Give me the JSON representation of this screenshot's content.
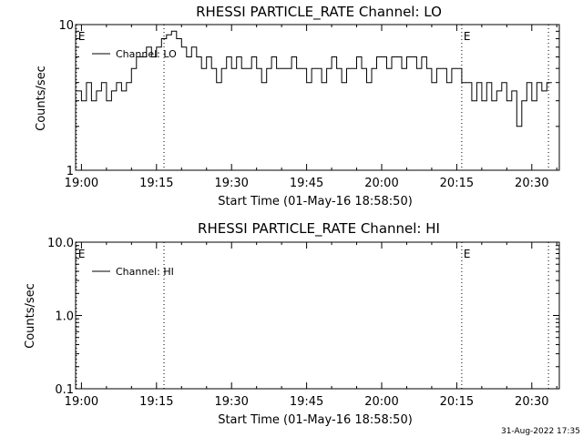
{
  "footer_timestamp": "31-Aug-2022 17:35",
  "chart_data": [
    {
      "type": "line",
      "title": "RHESSI PARTICLE_RATE Channel: LO",
      "xlabel": "Start Time (01-May-16 18:58:50)",
      "ylabel": "Counts/sec",
      "yscale": "log",
      "ylim": [
        1,
        10
      ],
      "xlim": [
        "18:58:50",
        "20:35:30"
      ],
      "x_ticks": [
        "19:00",
        "19:15",
        "19:30",
        "19:45",
        "20:00",
        "20:15",
        "20:30"
      ],
      "y_ticks": [
        "1",
        "10"
      ],
      "legend": "Channel: LO",
      "legend_position": "top-left",
      "event_markers": [
        {
          "label": "E",
          "time": "18:59:00"
        },
        {
          "label": "",
          "time": "19:16:30"
        },
        {
          "label": "E",
          "time": "20:16:00"
        },
        {
          "label": "",
          "time": "20:33:20"
        }
      ],
      "series": [
        {
          "name": "Channel: LO",
          "x": [
            "18:59",
            "19:00",
            "19:01",
            "19:02",
            "19:03",
            "19:04",
            "19:05",
            "19:06",
            "19:07",
            "19:08",
            "19:09",
            "19:10",
            "19:11",
            "19:12",
            "19:13",
            "19:14",
            "19:15",
            "19:16",
            "19:17",
            "19:18",
            "19:19",
            "19:20",
            "19:21",
            "19:22",
            "19:23",
            "19:24",
            "19:25",
            "19:26",
            "19:27",
            "19:28",
            "19:29",
            "19:30",
            "19:31",
            "19:32",
            "19:33",
            "19:34",
            "19:35",
            "19:36",
            "19:37",
            "19:38",
            "19:39",
            "19:40",
            "19:41",
            "19:42",
            "19:43",
            "19:44",
            "19:45",
            "19:46",
            "19:47",
            "19:48",
            "19:49",
            "19:50",
            "19:51",
            "19:52",
            "19:53",
            "19:54",
            "19:55",
            "19:56",
            "19:57",
            "19:58",
            "19:59",
            "20:00",
            "20:01",
            "20:02",
            "20:03",
            "20:04",
            "20:05",
            "20:06",
            "20:07",
            "20:08",
            "20:09",
            "20:10",
            "20:11",
            "20:12",
            "20:13",
            "20:14",
            "20:15",
            "20:16",
            "20:17",
            "20:18",
            "20:19",
            "20:20",
            "20:21",
            "20:22",
            "20:23",
            "20:24",
            "20:25",
            "20:26",
            "20:27",
            "20:28",
            "20:29",
            "20:30",
            "20:31",
            "20:32",
            "20:33"
          ],
          "values": [
            3.5,
            3.0,
            4.0,
            3.0,
            3.5,
            4.0,
            3.0,
            3.5,
            4.0,
            3.5,
            4.0,
            5.0,
            6.0,
            6.0,
            7.0,
            6.0,
            7.0,
            8.0,
            8.5,
            9.0,
            8.0,
            7.0,
            6.0,
            7.0,
            6.0,
            5.0,
            6.0,
            5.0,
            4.0,
            5.0,
            6.0,
            5.0,
            6.0,
            5.0,
            5.0,
            6.0,
            5.0,
            4.0,
            5.0,
            6.0,
            5.0,
            5.0,
            5.0,
            6.0,
            5.0,
            5.0,
            4.0,
            5.0,
            5.0,
            4.0,
            5.0,
            6.0,
            5.0,
            4.0,
            5.0,
            5.0,
            6.0,
            5.0,
            4.0,
            5.0,
            6.0,
            6.0,
            5.0,
            6.0,
            6.0,
            5.0,
            6.0,
            6.0,
            5.0,
            6.0,
            5.0,
            4.0,
            5.0,
            5.0,
            4.0,
            5.0,
            5.0,
            4.0,
            4.0,
            3.0,
            4.0,
            3.0,
            4.0,
            3.0,
            3.5,
            4.0,
            3.0,
            3.5,
            2.0,
            3.0,
            4.0,
            3.0,
            4.0,
            3.5,
            4.0
          ]
        }
      ]
    },
    {
      "type": "line",
      "title": "RHESSI PARTICLE_RATE Channel: HI",
      "xlabel": "Start Time (01-May-16 18:58:50)",
      "ylabel": "Counts/sec",
      "yscale": "log",
      "ylim": [
        0.1,
        10.0
      ],
      "xlim": [
        "18:58:50",
        "20:35:30"
      ],
      "x_ticks": [
        "19:00",
        "19:15",
        "19:30",
        "19:45",
        "20:00",
        "20:15",
        "20:30"
      ],
      "y_ticks": [
        "0.1",
        "1.0",
        "10.0"
      ],
      "legend": "Channel: HI",
      "legend_position": "top-left",
      "event_markers": [
        {
          "label": "E",
          "time": "18:59:00"
        },
        {
          "label": "",
          "time": "19:16:30"
        },
        {
          "label": "E",
          "time": "20:16:00"
        },
        {
          "label": "",
          "time": "20:33:20"
        }
      ],
      "series": [
        {
          "name": "Channel: HI",
          "x": [],
          "values": []
        }
      ]
    }
  ]
}
